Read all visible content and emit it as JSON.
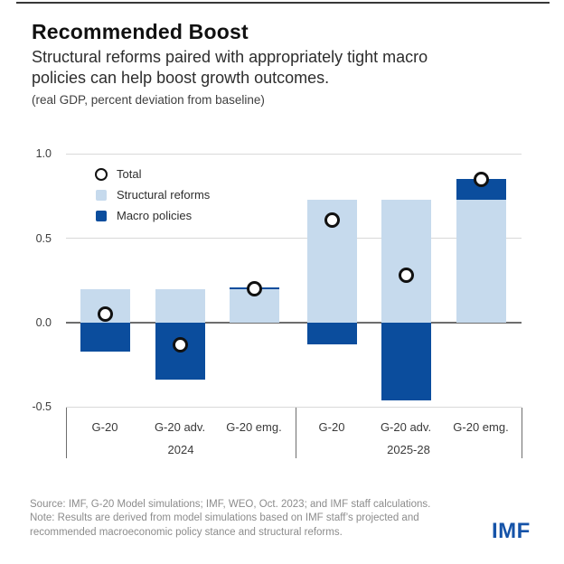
{
  "header": {
    "title": "Recommended Boost",
    "subtitle": "Structural reforms paired with appropriately tight macro policies can help boost growth outcomes.",
    "units": "(real GDP, percent deviation from baseline)"
  },
  "chart_data": {
    "type": "bar",
    "stacked": true,
    "title": "Recommended Boost",
    "ylabel": "real GDP, percent deviation from baseline",
    "ylim": [
      -0.5,
      1.0
    ],
    "yticks": [
      1.0,
      0.5,
      0.0,
      -0.5
    ],
    "ytick_labels": [
      "1.0",
      "0.5",
      "0.0",
      "-0.5"
    ],
    "grid": "horizontal",
    "legend_position": "top-left-inside",
    "categories": [
      "G-20",
      "G-20 adv.",
      "G-20 emg.",
      "G-20",
      "G-20 adv.",
      "G-20 emg."
    ],
    "groups": [
      {
        "label": "2024",
        "span": [
          0,
          2
        ]
      },
      {
        "label": "2025-28",
        "span": [
          3,
          5
        ]
      }
    ],
    "series": [
      {
        "name": "Structural reforms",
        "kind": "bar",
        "color": "#c6daed",
        "values": [
          0.2,
          0.2,
          0.2,
          0.73,
          0.73,
          0.73
        ]
      },
      {
        "name": "Macro policies",
        "kind": "bar",
        "color": "#0b4d9d",
        "values": [
          -0.17,
          -0.34,
          0.01,
          -0.13,
          -0.46,
          0.12
        ]
      },
      {
        "name": "Total",
        "kind": "marker",
        "color": "#111111",
        "values": [
          0.05,
          -0.13,
          0.2,
          0.61,
          0.28,
          0.85
        ]
      }
    ],
    "legend": [
      {
        "label": "Total",
        "marker": "circle"
      },
      {
        "label": "Structural reforms",
        "marker": "square",
        "color": "#c6daed"
      },
      {
        "label": "Macro policies",
        "marker": "square",
        "color": "#0b4d9d"
      }
    ]
  },
  "footer": {
    "source": "Source: IMF, G-20 Model simulations; IMF, WEO, Oct. 2023; and IMF staff calculations.",
    "note": "Note: Results are derived from model simulations based on IMF staff’s projected and recommended macroeconomic policy stance and structural reforms.",
    "logo": "IMF"
  }
}
